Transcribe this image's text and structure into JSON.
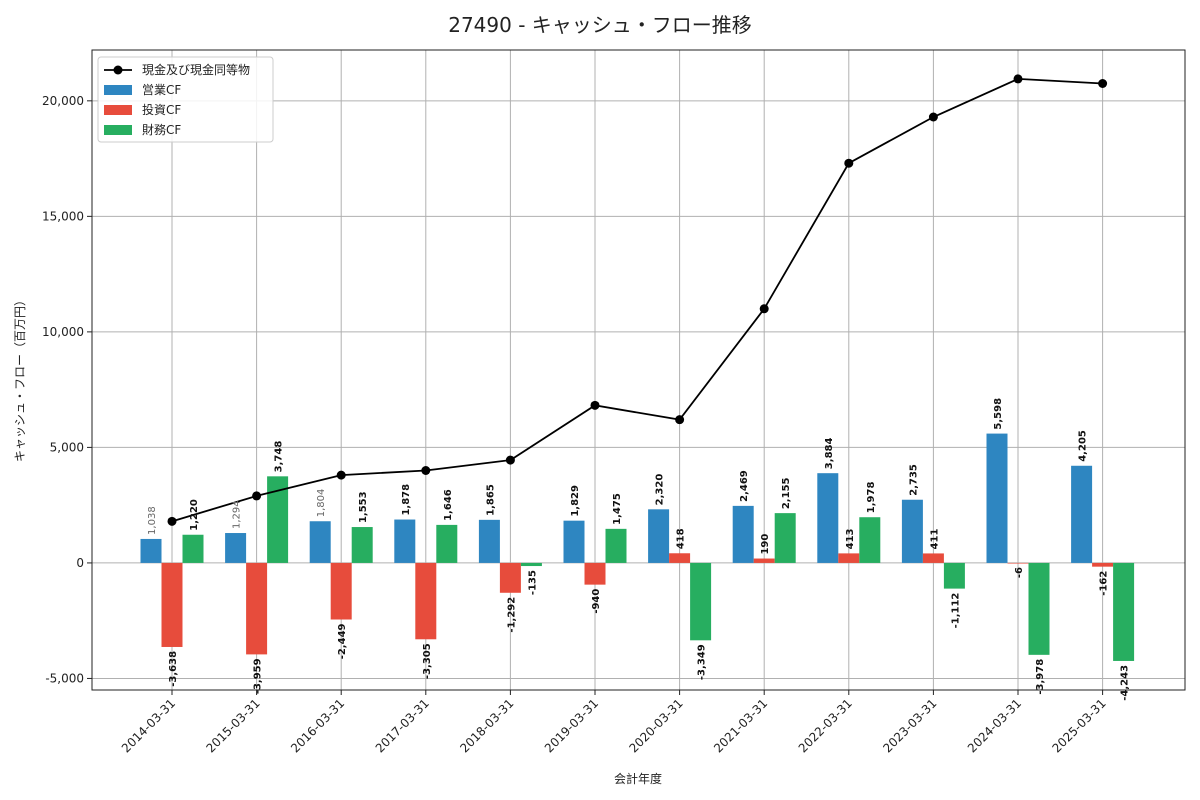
{
  "chart_data": {
    "type": "bar",
    "title": "27490 - キャッシュ・フロー推移",
    "xlabel": "会計年度",
    "ylabel": "キャッシュ・フロー（百万円）",
    "categories": [
      "2014-03-31",
      "2015-03-31",
      "2016-03-31",
      "2017-03-31",
      "2018-03-31",
      "2019-03-31",
      "2020-03-31",
      "2021-03-31",
      "2022-03-31",
      "2023-03-31",
      "2024-03-31",
      "2025-03-31"
    ],
    "ylim": [
      -5500,
      22200
    ],
    "yticks": [
      -5000,
      0,
      5000,
      10000,
      15000,
      20000
    ],
    "ytick_labels": [
      "-5,000",
      "0",
      "5,000",
      "10,000",
      "15,000",
      "20,000"
    ],
    "grid": true,
    "legend_position": "top-left",
    "series": [
      {
        "name": "営業CF",
        "kind": "bar",
        "color": "#2e86c1",
        "values": [
          1038,
          1294,
          1804,
          1878,
          1865,
          1829,
          2320,
          2469,
          3884,
          2735,
          5598,
          4205
        ],
        "labels": [
          "1,038",
          "1,294",
          "1,804",
          "1,878",
          "1,865",
          "1,829",
          "2,320",
          "2,469",
          "3,884",
          "2,735",
          "5,598",
          "4,205"
        ]
      },
      {
        "name": "投資CF",
        "kind": "bar",
        "color": "#e74c3c",
        "values": [
          -3638,
          -3959,
          -2449,
          -3305,
          -1292,
          -940,
          418,
          190,
          413,
          411,
          -6,
          -162
        ],
        "labels": [
          "-3,638",
          "-3,959",
          "-2,449",
          "-3,305",
          "-1,292",
          "-940",
          "418",
          "190",
          "413",
          "411",
          "-6",
          "-162"
        ]
      },
      {
        "name": "財務CF",
        "kind": "bar",
        "color": "#27ae60",
        "values": [
          1220,
          3748,
          1553,
          1646,
          -135,
          1475,
          -3349,
          2155,
          1978,
          -1112,
          -3978,
          -4243
        ],
        "labels": [
          "1,220",
          "3,748",
          "1,553",
          "1,646",
          "-135",
          "1,475",
          "-3,349",
          "2,155",
          "1,978",
          "-1,112",
          "-3,978",
          "-4,243"
        ]
      },
      {
        "name": "現金及び現金同等物",
        "kind": "line",
        "color": "#000000",
        "values": [
          1800,
          2900,
          3800,
          4000,
          4450,
          6820,
          6200,
          11000,
          17300,
          19300,
          20950,
          20750
        ]
      }
    ]
  }
}
